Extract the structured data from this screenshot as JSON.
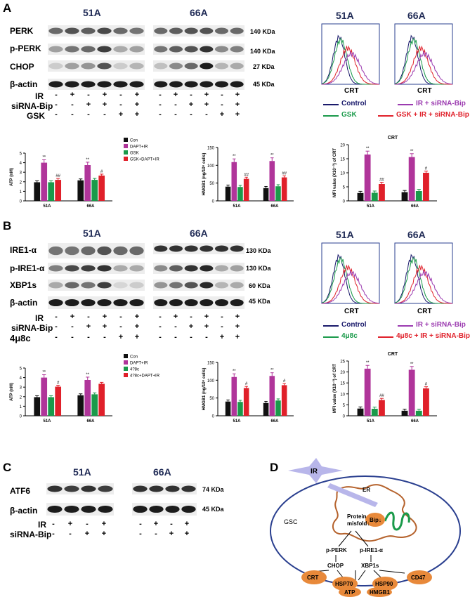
{
  "panels": {
    "A": {
      "letter": "A",
      "blot": {
        "col1": "51A",
        "col2": "66A",
        "bands": [
          {
            "label": "PERK",
            "kda": "140 KDa"
          },
          {
            "label": "p-PERK",
            "kda": "140 KDa"
          },
          {
            "label": "CHOP",
            "kda": "27 KDa"
          },
          {
            "label": "β-actin",
            "kda": "45 KDa"
          }
        ],
        "treatments": [
          {
            "label": "IR",
            "signs": [
              "-",
              "+",
              "-",
              "+",
              "-",
              "+",
              "-",
              "+",
              "-",
              "+",
              "-",
              "+"
            ]
          },
          {
            "label": "siRNA-Bip",
            "signs": [
              "-",
              "-",
              "+",
              "+",
              "-",
              "+",
              "-",
              "-",
              "+",
              "+",
              "-",
              "+"
            ]
          },
          {
            "label": "GSK",
            "signs": [
              "-",
              "-",
              "-",
              "-",
              "+",
              "+",
              "-",
              "-",
              "-",
              "-",
              "+",
              "+"
            ]
          }
        ]
      },
      "flow": {
        "col1": "51A",
        "col2": "66A",
        "xlabel": "CRT",
        "legend": [
          {
            "label": "Control",
            "color": "#1a1a6b"
          },
          {
            "label": "IR + siRNA-Bip",
            "color": "#9b3bb0"
          },
          {
            "label": "GSK",
            "color": "#1a9a4a"
          },
          {
            "label": "GSK + IR + siRNA-Bip",
            "color": "#e0202a"
          }
        ]
      },
      "bars": {
        "legend": [
          "Con",
          "DAPT+IR",
          "GSK",
          "GSK+DAPT+IR"
        ],
        "colors": [
          "#111111",
          "#b0359a",
          "#1a9a4a",
          "#e0202a"
        ],
        "crt_title": "CRT"
      }
    },
    "B": {
      "letter": "B",
      "blot": {
        "col1": "51A",
        "col2": "66A",
        "bands": [
          {
            "label": "IRE1-α",
            "kda": "130 KDa"
          },
          {
            "label": "p-IRE1-α",
            "kda": "130 KDa"
          },
          {
            "label": "XBP1s",
            "kda": "60 KDa"
          },
          {
            "label": "β-actin",
            "kda": "45 KDa"
          }
        ],
        "treatments": [
          {
            "label": "IR",
            "signs": [
              "-",
              "+",
              "-",
              "+",
              "-",
              "+",
              "-",
              "+",
              "-",
              "+",
              "-",
              "+"
            ]
          },
          {
            "label": "siRNA-Bip",
            "signs": [
              "-",
              "-",
              "+",
              "+",
              "-",
              "+",
              "-",
              "-",
              "+",
              "+",
              "-",
              "+"
            ]
          },
          {
            "label": "4μ8c",
            "signs": [
              "-",
              "-",
              "-",
              "-",
              "+",
              "+",
              "-",
              "-",
              "-",
              "-",
              "+",
              "+"
            ]
          }
        ]
      },
      "flow": {
        "col1": "51A",
        "col2": "66A",
        "xlabel": "CRT",
        "legend": [
          {
            "label": "Control",
            "color": "#1a1a6b"
          },
          {
            "label": "IR + siRNA-Bip",
            "color": "#9b3bb0"
          },
          {
            "label": "4μ8c",
            "color": "#1a9a4a"
          },
          {
            "label": "4μ8c + IR + siRNA-Bip",
            "color": "#e0202a"
          }
        ]
      },
      "bars": {
        "legend": [
          "Con",
          "DAPT+IR",
          "4?8c",
          "4?8c+DAPT+IR"
        ],
        "colors": [
          "#111111",
          "#b0359a",
          "#1a9a4a",
          "#e0202a"
        ],
        "crt_title": "CRT"
      }
    },
    "C": {
      "letter": "C",
      "blot": {
        "col1": "51A",
        "col2": "66A",
        "bands": [
          {
            "label": "ATF6",
            "kda": "74 KDa"
          },
          {
            "label": "β-actin",
            "kda": "45 KDa"
          }
        ],
        "treatments": [
          {
            "label": "IR",
            "signs": [
              "-",
              "+",
              "-",
              "+",
              "-",
              "+",
              "-",
              "+"
            ]
          },
          {
            "label": "siRNA-Bip",
            "signs": [
              "-",
              "-",
              "+",
              "+",
              "-",
              "-",
              "+",
              "+"
            ]
          }
        ]
      }
    },
    "D": {
      "letter": "D",
      "labels": {
        "ir": "IR",
        "er": "ER",
        "gsc": "GSC",
        "protein": "Protein",
        "misfold": "misfold↓",
        "bip": "Bip↓",
        "pperk": "p-PERK",
        "pire": "p-IRE1-α",
        "chop": "CHOP",
        "xbp": "XBP1s",
        "crt": "CRT",
        "hsp70": "HSP70",
        "hsp90": "HSP90",
        "cd47": "CD47",
        "atp": "ATP",
        "hmgb1": "HMGB1"
      }
    }
  },
  "chart_data": [
    {
      "type": "bar",
      "panel": "A",
      "ylabel": "ATP (nM)",
      "categories": [
        "51A",
        "66A"
      ],
      "ylim": [
        0,
        5
      ],
      "series": [
        {
          "name": "Con",
          "values": [
            1.95,
            2.15
          ]
        },
        {
          "name": "DAPT+IR",
          "values": [
            4.0,
            3.75
          ]
        },
        {
          "name": "GSK",
          "values": [
            1.95,
            2.2
          ]
        },
        {
          "name": "GSK+DAPT+IR",
          "values": [
            2.2,
            2.65
          ]
        }
      ],
      "annotations": [
        [
          "",
          "**",
          "",
          "##"
        ],
        [
          "",
          "**",
          "",
          "#"
        ]
      ]
    },
    {
      "type": "bar",
      "panel": "A",
      "ylabel": "HMGB1 (ng/10⁶ cells)",
      "categories": [
        "51A",
        "66A"
      ],
      "ylim": [
        0,
        150
      ],
      "series": [
        {
          "name": "Con",
          "values": [
            40,
            36
          ]
        },
        {
          "name": "DAPT+IR",
          "values": [
            109,
            112
          ]
        },
        {
          "name": "GSK",
          "values": [
            39,
            41
          ]
        },
        {
          "name": "GSK+DAPT+IR",
          "values": [
            62,
            66
          ]
        }
      ],
      "annotations": [
        [
          "",
          "**",
          "",
          "##"
        ],
        [
          "",
          "**",
          "",
          "##"
        ]
      ]
    },
    {
      "type": "bar",
      "panel": "A",
      "title": "CRT",
      "ylabel": "MFI value (X10⁻³) of CRT",
      "categories": [
        "51A",
        "66A"
      ],
      "ylim": [
        0,
        20
      ],
      "series": [
        {
          "name": "Con",
          "values": [
            2.8,
            3.1
          ]
        },
        {
          "name": "DAPT+IR",
          "values": [
            16.5,
            15.6
          ]
        },
        {
          "name": "GSK",
          "values": [
            2.9,
            3.5
          ]
        },
        {
          "name": "GSK+DAPT+IR",
          "values": [
            6.0,
            10.0
          ]
        }
      ],
      "annotations": [
        [
          "",
          "**",
          "",
          "##"
        ],
        [
          "",
          "**",
          "",
          "#"
        ]
      ]
    },
    {
      "type": "bar",
      "panel": "B",
      "ylabel": "ATP (nM)",
      "categories": [
        "51A",
        "66A"
      ],
      "ylim": [
        0,
        5
      ],
      "series": [
        {
          "name": "Con",
          "values": [
            1.95,
            2.15
          ]
        },
        {
          "name": "DAPT+IR",
          "values": [
            4.0,
            3.75
          ]
        },
        {
          "name": "4?8c",
          "values": [
            1.95,
            2.25
          ]
        },
        {
          "name": "4?8c+DAPT+IR",
          "values": [
            3.05,
            3.35
          ]
        }
      ],
      "annotations": [
        [
          "",
          "**",
          "",
          "#"
        ],
        [
          "",
          "**",
          "",
          ""
        ]
      ]
    },
    {
      "type": "bar",
      "panel": "B",
      "ylabel": "HMGB1 (ng/10⁶ cells)",
      "categories": [
        "51A",
        "66A"
      ],
      "ylim": [
        0,
        150
      ],
      "series": [
        {
          "name": "Con",
          "values": [
            40,
            36
          ]
        },
        {
          "name": "DAPT+IR",
          "values": [
            109,
            112
          ]
        },
        {
          "name": "4?8c",
          "values": [
            39,
            43
          ]
        },
        {
          "name": "4?8c+DAPT+IR",
          "values": [
            78,
            86
          ]
        }
      ],
      "annotations": [
        [
          "",
          "**",
          "",
          "#"
        ],
        [
          "",
          "**",
          "",
          "#"
        ]
      ]
    },
    {
      "type": "bar",
      "panel": "B",
      "title": "CRT",
      "ylabel": "MFI value (X10⁻³) of CRT",
      "categories": [
        "51A",
        "66A"
      ],
      "ylim": [
        0,
        25
      ],
      "series": [
        {
          "name": "Con",
          "values": [
            3.3,
            2.3
          ]
        },
        {
          "name": "DAPT+IR",
          "values": [
            21.5,
            21.0
          ]
        },
        {
          "name": "4?8c",
          "values": [
            3.2,
            2.3
          ]
        },
        {
          "name": "4?8c+DAPT+IR",
          "values": [
            7.2,
            12.5
          ]
        }
      ],
      "annotations": [
        [
          "",
          "**",
          "",
          "##"
        ],
        [
          "",
          "**",
          "",
          "#"
        ]
      ]
    }
  ]
}
